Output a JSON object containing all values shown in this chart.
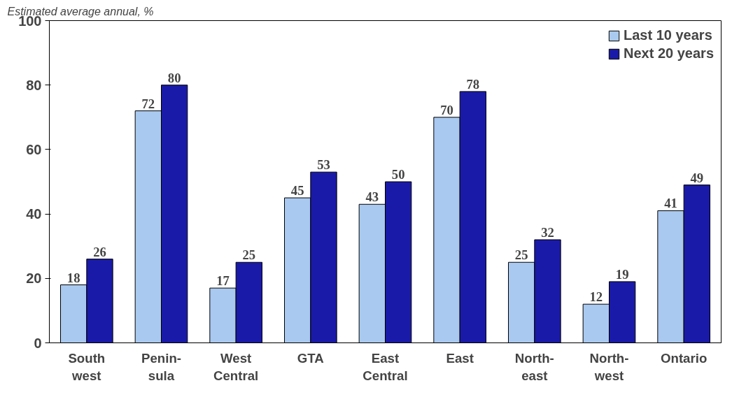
{
  "chart_data": {
    "type": "bar",
    "ylabel": "Estimated average annual, %",
    "categories": [
      "South\nwest",
      "Penin-\nsula",
      "West\nCentral",
      "GTA",
      "East\nCentral",
      "East",
      "North-\neast",
      "North-\nwest",
      "Ontario"
    ],
    "series": [
      {
        "name": "Last 10 years",
        "color": "#a9c9f0",
        "values": [
          18,
          72,
          17,
          45,
          43,
          70,
          25,
          12,
          41
        ]
      },
      {
        "name": "Next 20 years",
        "color": "#1a1aa8",
        "values": [
          26,
          80,
          25,
          53,
          50,
          78,
          32,
          19,
          49
        ]
      }
    ],
    "ylim": [
      0,
      100
    ],
    "yticks": [
      0,
      20,
      40,
      60,
      80,
      100
    ],
    "grid": false,
    "legend": "top right",
    "data_labels": true
  }
}
